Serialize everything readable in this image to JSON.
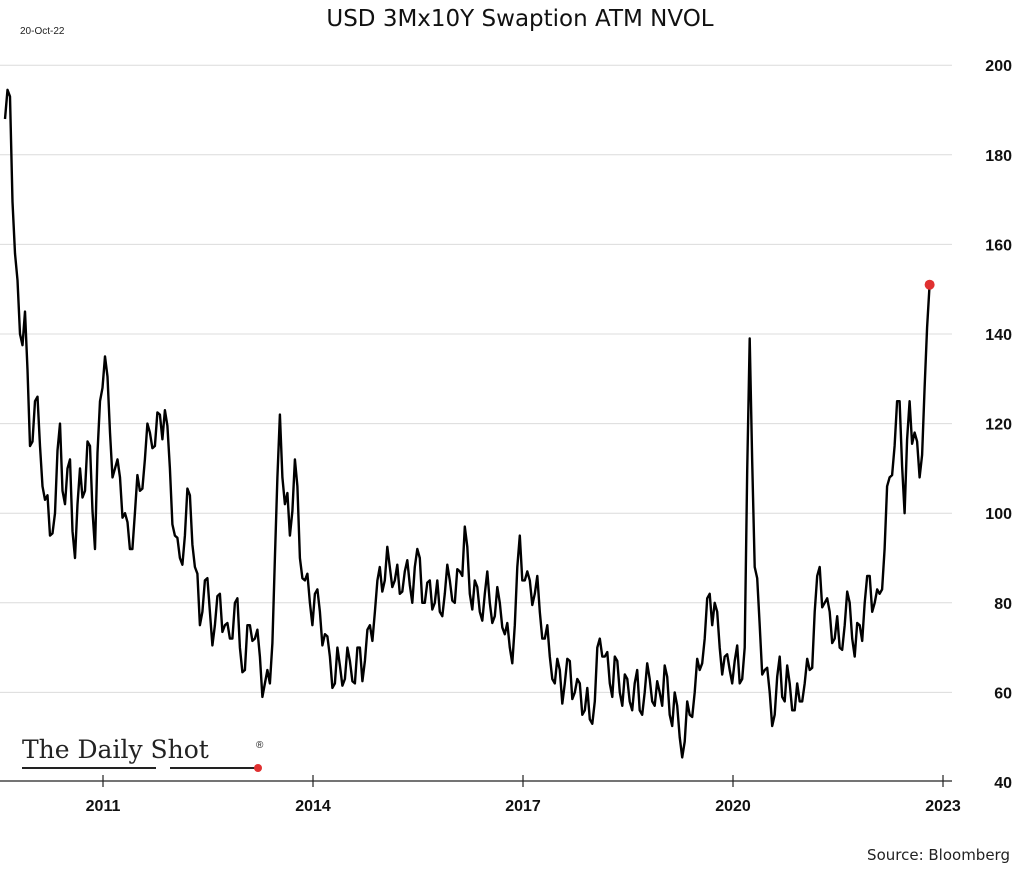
{
  "chart_data": {
    "type": "line",
    "title": "USD 3Mx10Y Swaption ATM NVOL",
    "date_label": "20-Oct-22",
    "source": "Source: Bloomberg",
    "logo": "The Daily Shot®",
    "xlabel": "",
    "ylabel": "",
    "xlim": [
      2009.53,
      2023.2
    ],
    "ylim": [
      40,
      200
    ],
    "x_ticks": [
      "2011",
      "2014",
      "2017",
      "2020",
      "2023"
    ],
    "x_tick_values": [
      2011,
      2014,
      2017,
      2020,
      2023
    ],
    "y_ticks": [
      "200",
      "180",
      "160",
      "140",
      "120",
      "100",
      "80",
      "60",
      "40"
    ],
    "y_tick_values": [
      200,
      180,
      160,
      140,
      120,
      100,
      80,
      60,
      40
    ],
    "grid": "horizontal",
    "y_axis_side": "right",
    "series": [
      {
        "name": "USD 3Mx10Y Swaption ATM NVOL",
        "color": "#000000",
        "x_start": 2009.6,
        "x_step_years": 0.0714,
        "values": [
          188,
          193,
          158,
          140,
          145,
          115,
          125,
          115,
          103,
          95,
          100,
          120,
          102,
          112,
          90,
          110,
          105,
          115,
          92,
          125,
          135,
          118,
          110,
          108,
          100,
          92,
          100,
          105,
          112,
          118,
          115,
          122,
          123,
          110,
          95,
          90,
          95,
          104,
          88,
          75,
          85,
          78,
          75,
          82,
          75,
          72,
          80,
          70,
          65,
          75,
          72,
          68,
          62,
          62,
          90,
          122,
          102,
          95,
          112,
          90,
          85,
          80,
          82,
          78,
          73,
          68,
          62,
          66,
          63,
          67,
          62,
          70,
          67,
          75,
          78,
          88,
          85,
          88,
          85,
          82,
          87,
          84,
          88,
          90,
          80,
          85,
          80,
          78,
          82,
          85,
          80,
          87,
          97,
          82,
          85,
          78,
          82,
          80,
          77,
          80,
          73,
          70,
          75,
          95,
          85,
          85,
          82,
          78,
          72,
          68,
          62,
          65,
          62,
          67,
          60,
          62,
          56,
          54,
          58,
          72,
          68,
          62,
          68,
          60,
          64,
          58,
          62,
          56,
          60,
          63,
          57,
          60,
          66,
          55,
          60,
          50,
          49,
          55,
          60,
          65,
          72,
          82,
          80,
          70,
          68,
          65,
          67,
          62,
          70,
          139,
          88,
          75,
          65,
          60,
          55,
          68,
          58,
          62,
          56,
          58,
          62,
          65,
          78,
          88,
          80,
          78,
          72,
          70,
          75,
          80,
          68,
          75,
          80,
          86,
          80,
          82,
          92,
          108,
          115,
          125,
          100,
          125,
          118,
          108,
          128,
          151
        ]
      }
    ],
    "last_point_marker_color": "#e03030"
  }
}
